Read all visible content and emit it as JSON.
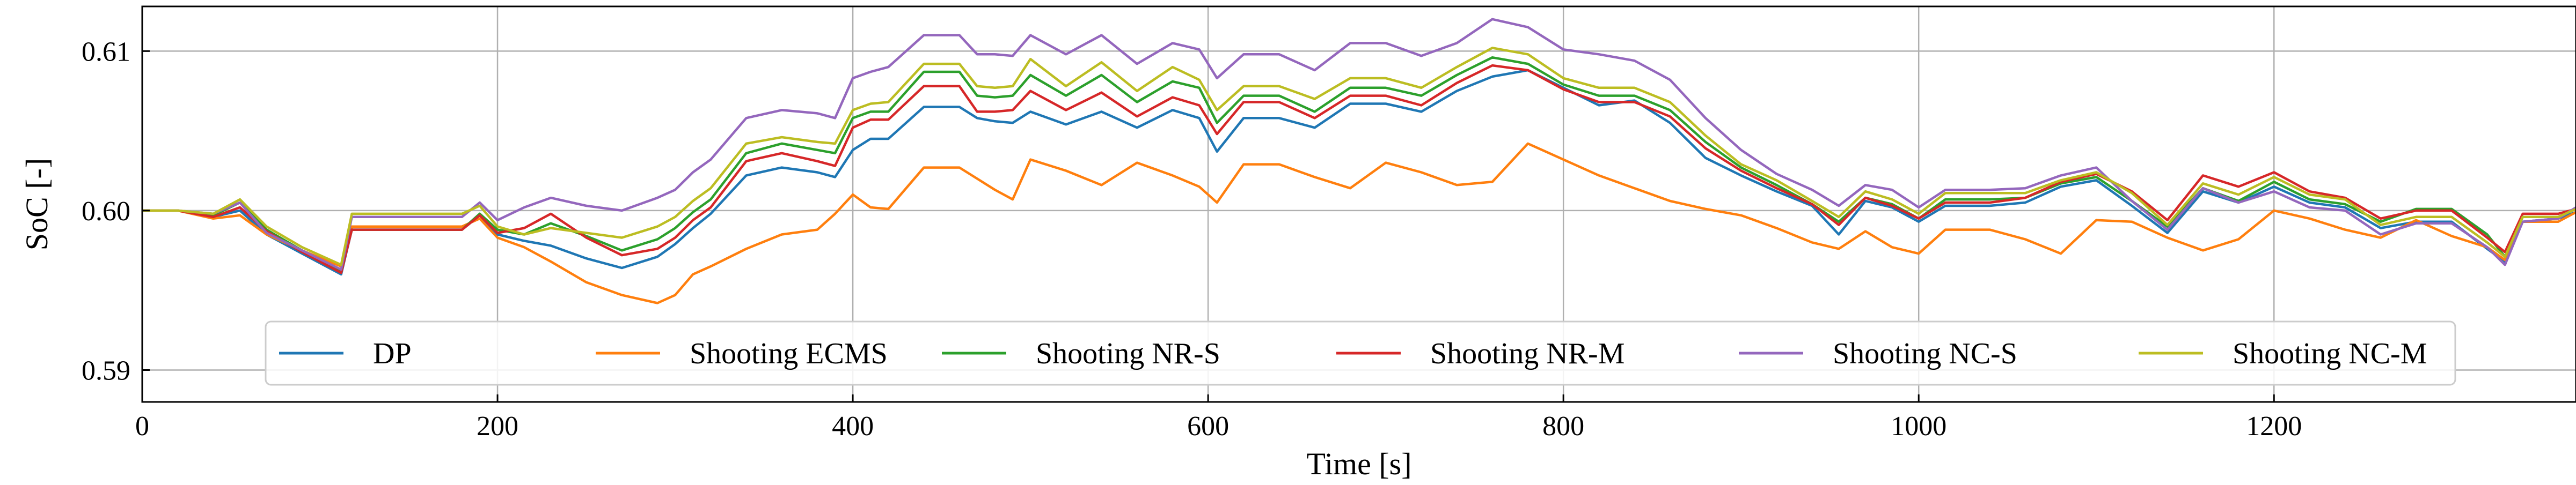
{
  "chart_data": {
    "type": "line",
    "title": "",
    "xlabel": "Time [s]",
    "ylabel": "SoC [-]",
    "xlim": [
      0,
      1370
    ],
    "ylim": [
      0.588,
      0.6128
    ],
    "xticks": [
      0,
      200,
      400,
      600,
      800,
      1000,
      1200
    ],
    "xtick_labels": [
      "0",
      "200",
      "400",
      "600",
      "800",
      "1000",
      "1200"
    ],
    "yticks": [
      0.59,
      0.6,
      0.61
    ],
    "ytick_labels": [
      "0.59",
      "0.60",
      "0.61"
    ],
    "grid": true,
    "legend_position": "bottom",
    "x": [
      0,
      20,
      40,
      55,
      70,
      90,
      112,
      118,
      130,
      160,
      180,
      190,
      200,
      215,
      230,
      250,
      270,
      290,
      300,
      310,
      320,
      340,
      360,
      380,
      390,
      400,
      410,
      420,
      440,
      460,
      470,
      480,
      490,
      500,
      520,
      540,
      560,
      580,
      595,
      605,
      620,
      640,
      660,
      680,
      700,
      720,
      740,
      760,
      780,
      800,
      820,
      840,
      860,
      880,
      900,
      920,
      940,
      955,
      970,
      985,
      1000,
      1015,
      1040,
      1060,
      1080,
      1100,
      1120,
      1140,
      1160,
      1180,
      1200,
      1220,
      1240,
      1260,
      1280,
      1300,
      1320,
      1330,
      1340,
      1360,
      1370
    ],
    "series": [
      {
        "name": "DP",
        "color": "#1f77b4",
        "values": [
          0.6,
          0.6,
          0.5996,
          0.6,
          0.5985,
          0.5973,
          0.596,
          0.5988,
          0.5988,
          0.5988,
          0.5988,
          0.5997,
          0.5985,
          0.5981,
          0.5978,
          0.597,
          0.5964,
          0.5971,
          0.5979,
          0.5989,
          0.5998,
          0.6022,
          0.6027,
          0.6024,
          0.6021,
          0.6038,
          0.6045,
          0.6045,
          0.6065,
          0.6065,
          0.6058,
          0.6056,
          0.6055,
          0.6062,
          0.6054,
          0.6062,
          0.6052,
          0.6063,
          0.6058,
          0.6037,
          0.6058,
          0.6058,
          0.6052,
          0.6067,
          0.6067,
          0.6062,
          0.6075,
          0.6084,
          0.6088,
          0.6077,
          0.6066,
          0.6069,
          0.6055,
          0.6033,
          0.6022,
          0.6012,
          0.6003,
          0.5985,
          0.6006,
          0.6002,
          0.5993,
          0.6003,
          0.6003,
          0.6005,
          0.6015,
          0.6019,
          0.6003,
          0.5986,
          0.6012,
          0.6005,
          0.6015,
          0.6005,
          0.6002,
          0.5989,
          0.5993,
          0.5993,
          0.5976,
          0.5968,
          0.5993,
          0.5995,
          0.5999
        ]
      },
      {
        "name": "Shooting ECMS",
        "color": "#ff7f0e",
        "values": [
          0.6,
          0.6,
          0.5995,
          0.5997,
          0.5985,
          0.5975,
          0.5965,
          0.599,
          0.599,
          0.599,
          0.599,
          0.5995,
          0.5983,
          0.5977,
          0.5968,
          0.5955,
          0.5947,
          0.5942,
          0.5947,
          0.596,
          0.5965,
          0.5976,
          0.5985,
          0.5988,
          0.5998,
          0.601,
          0.6002,
          0.6001,
          0.6027,
          0.6027,
          0.602,
          0.6013,
          0.6007,
          0.6032,
          0.6025,
          0.6016,
          0.603,
          0.6022,
          0.6015,
          0.6005,
          0.6029,
          0.6029,
          0.6021,
          0.6014,
          0.603,
          0.6024,
          0.6016,
          0.6018,
          0.6042,
          0.6032,
          0.6022,
          0.6014,
          0.6006,
          0.6001,
          0.5997,
          0.5989,
          0.598,
          0.5976,
          0.5987,
          0.5977,
          0.5973,
          0.5988,
          0.5988,
          0.5982,
          0.5973,
          0.5994,
          0.5993,
          0.5983,
          0.5975,
          0.5982,
          0.6,
          0.5995,
          0.5988,
          0.5983,
          0.5994,
          0.5984,
          0.5977,
          0.5969,
          0.5993,
          0.5993,
          0.5999
        ]
      },
      {
        "name": "Shooting NR-S",
        "color": "#2ca02c",
        "values": [
          0.6,
          0.6,
          0.5997,
          0.6005,
          0.5988,
          0.5975,
          0.5962,
          0.5988,
          0.5988,
          0.5988,
          0.5988,
          0.5998,
          0.5988,
          0.5985,
          0.5992,
          0.5984,
          0.5975,
          0.5982,
          0.5989,
          0.5999,
          0.6007,
          0.6036,
          0.6042,
          0.6038,
          0.6036,
          0.6058,
          0.6062,
          0.6062,
          0.6087,
          0.6087,
          0.6072,
          0.6071,
          0.6072,
          0.6085,
          0.6072,
          0.6085,
          0.6068,
          0.6081,
          0.6077,
          0.6055,
          0.6072,
          0.6072,
          0.6062,
          0.6077,
          0.6077,
          0.6072,
          0.6085,
          0.6096,
          0.6092,
          0.6079,
          0.6072,
          0.6072,
          0.6063,
          0.6043,
          0.6027,
          0.6016,
          0.6004,
          0.5993,
          0.6008,
          0.6004,
          0.5995,
          0.6007,
          0.6007,
          0.6008,
          0.6017,
          0.6021,
          0.6006,
          0.599,
          0.6014,
          0.6006,
          0.6018,
          0.6007,
          0.6004,
          0.5993,
          0.6001,
          0.6001,
          0.5985,
          0.5971,
          0.5996,
          0.5996,
          0.6001
        ]
      },
      {
        "name": "Shooting NR-M",
        "color": "#d62728",
        "values": [
          0.6,
          0.6,
          0.5996,
          0.6002,
          0.5987,
          0.5974,
          0.5961,
          0.5988,
          0.5988,
          0.5988,
          0.5988,
          0.5997,
          0.5986,
          0.5989,
          0.5998,
          0.5983,
          0.5972,
          0.5976,
          0.5983,
          0.5994,
          0.6002,
          0.6031,
          0.6036,
          0.6031,
          0.6028,
          0.6052,
          0.6057,
          0.6057,
          0.6078,
          0.6078,
          0.6062,
          0.6062,
          0.6063,
          0.6075,
          0.6063,
          0.6074,
          0.6059,
          0.6071,
          0.6066,
          0.6048,
          0.6068,
          0.6068,
          0.6058,
          0.6072,
          0.6072,
          0.6066,
          0.608,
          0.6091,
          0.6088,
          0.6076,
          0.6068,
          0.6068,
          0.6059,
          0.6039,
          0.6025,
          0.6014,
          0.6004,
          0.5991,
          0.6008,
          0.6003,
          0.5995,
          0.6005,
          0.6005,
          0.6008,
          0.6018,
          0.6023,
          0.6012,
          0.5994,
          0.6022,
          0.6015,
          0.6024,
          0.6012,
          0.6008,
          0.5995,
          0.6,
          0.6,
          0.5983,
          0.5974,
          0.5998,
          0.5998,
          0.6001
        ]
      },
      {
        "name": "Shooting NC-S",
        "color": "#9467bd",
        "values": [
          0.6,
          0.6,
          0.5998,
          0.6005,
          0.5986,
          0.5975,
          0.5963,
          0.5996,
          0.5996,
          0.5996,
          0.5996,
          0.6005,
          0.5994,
          0.6002,
          0.6008,
          0.6003,
          0.6,
          0.6008,
          0.6013,
          0.6024,
          0.6032,
          0.6058,
          0.6063,
          0.6061,
          0.6058,
          0.6083,
          0.6087,
          0.609,
          0.611,
          0.611,
          0.6098,
          0.6098,
          0.6097,
          0.611,
          0.6098,
          0.611,
          0.6092,
          0.6105,
          0.6101,
          0.6083,
          0.6098,
          0.6098,
          0.6088,
          0.6105,
          0.6105,
          0.6097,
          0.6105,
          0.612,
          0.6115,
          0.6101,
          0.6098,
          0.6094,
          0.6082,
          0.6058,
          0.6038,
          0.6023,
          0.6013,
          0.6003,
          0.6016,
          0.6013,
          0.6002,
          0.6013,
          0.6013,
          0.6014,
          0.6022,
          0.6027,
          0.6006,
          0.5988,
          0.6014,
          0.6005,
          0.6012,
          0.6002,
          0.6,
          0.5985,
          0.5992,
          0.5992,
          0.5977,
          0.5966,
          0.5993,
          0.5995,
          0.6002
        ]
      },
      {
        "name": "Shooting NC-M",
        "color": "#bcbd22",
        "values": [
          0.6,
          0.6,
          0.5998,
          0.6007,
          0.599,
          0.5977,
          0.5966,
          0.5998,
          0.5998,
          0.5998,
          0.5998,
          0.6003,
          0.599,
          0.5985,
          0.5989,
          0.5986,
          0.5983,
          0.599,
          0.5996,
          0.6006,
          0.6014,
          0.6042,
          0.6046,
          0.6043,
          0.6042,
          0.6063,
          0.6067,
          0.6068,
          0.6092,
          0.6092,
          0.6078,
          0.6077,
          0.6078,
          0.6095,
          0.6078,
          0.6093,
          0.6075,
          0.609,
          0.6082,
          0.6063,
          0.6078,
          0.6078,
          0.607,
          0.6083,
          0.6083,
          0.6077,
          0.609,
          0.6102,
          0.6098,
          0.6083,
          0.6077,
          0.6077,
          0.6068,
          0.6047,
          0.6029,
          0.6019,
          0.6006,
          0.5996,
          0.6012,
          0.6007,
          0.5998,
          0.6011,
          0.6011,
          0.6011,
          0.6019,
          0.6024,
          0.6011,
          0.5991,
          0.6017,
          0.601,
          0.6021,
          0.601,
          0.6007,
          0.5991,
          0.5996,
          0.5996,
          0.598,
          0.5971,
          0.5996,
          0.5996,
          0.6001
        ]
      }
    ]
  }
}
